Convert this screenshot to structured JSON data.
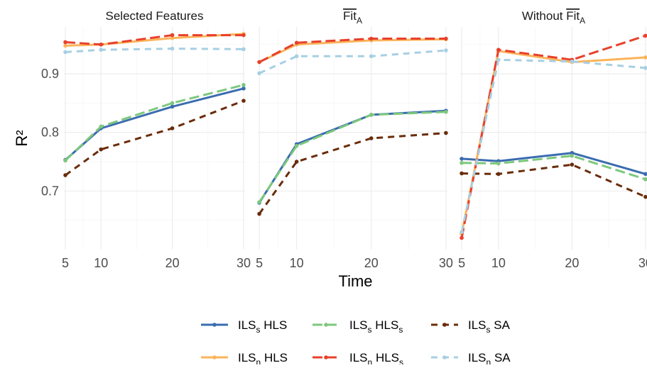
{
  "chart_data": {
    "type": "line",
    "xlabel": "Time",
    "ylabel": "R²",
    "x": [
      5,
      10,
      20,
      30
    ],
    "xticks": [
      "5",
      "10",
      "20",
      "30"
    ],
    "yticks": [
      "0.7",
      "0.8",
      "0.9"
    ],
    "ylim": [
      0.6,
      0.98
    ],
    "grid": true,
    "legend_position": "bottom",
    "panels": [
      {
        "title": "Selected Features",
        "title_base": "Selected Features",
        "title_sub": "",
        "title_overline": false,
        "series": [
          {
            "key": "ils_s_hls",
            "values": [
              0.753,
              0.807,
              0.844,
              0.875
            ]
          },
          {
            "key": "ils_s_hlss",
            "values": [
              0.752,
              0.81,
              0.85,
              0.881
            ]
          },
          {
            "key": "ils_s_sa",
            "values": [
              0.727,
              0.771,
              0.807,
              0.854
            ]
          },
          {
            "key": "ils_n_hls",
            "values": [
              0.948,
              0.95,
              0.961,
              0.968
            ]
          },
          {
            "key": "ils_n_hlss",
            "values": [
              0.954,
              0.95,
              0.966,
              0.966
            ]
          },
          {
            "key": "ils_n_sa",
            "values": [
              0.937,
              0.941,
              0.943,
              0.942
            ]
          }
        ]
      },
      {
        "title": "FitA",
        "title_base": "Fit",
        "title_sub": "A",
        "title_prefix": "",
        "title_overline": true,
        "series": [
          {
            "key": "ils_s_hls",
            "values": [
              0.68,
              0.78,
              0.83,
              0.837
            ]
          },
          {
            "key": "ils_s_hlss",
            "values": [
              0.681,
              0.777,
              0.83,
              0.835
            ]
          },
          {
            "key": "ils_s_sa",
            "values": [
              0.661,
              0.75,
              0.79,
              0.799
            ]
          },
          {
            "key": "ils_n_hls",
            "values": [
              0.92,
              0.95,
              0.957,
              0.959
            ]
          },
          {
            "key": "ils_n_hlss",
            "values": [
              0.92,
              0.953,
              0.96,
              0.96
            ]
          },
          {
            "key": "ils_n_sa",
            "values": [
              0.901,
              0.93,
              0.93,
              0.94
            ]
          }
        ]
      },
      {
        "title": "Without FitA",
        "title_prefix": "Without ",
        "title_base": "Fit",
        "title_sub": "A",
        "title_overline": true,
        "series": [
          {
            "key": "ils_s_hls",
            "values": [
              0.755,
              0.751,
              0.765,
              0.729
            ]
          },
          {
            "key": "ils_s_hlss",
            "values": [
              0.748,
              0.747,
              0.76,
              0.72
            ]
          },
          {
            "key": "ils_s_sa",
            "values": [
              0.73,
              0.729,
              0.745,
              0.69
            ]
          },
          {
            "key": "ils_n_hls",
            "values": [
              0.627,
              0.939,
              0.92,
              0.928
            ]
          },
          {
            "key": "ils_n_hlss",
            "values": [
              0.62,
              0.941,
              0.924,
              0.965
            ]
          },
          {
            "key": "ils_n_sa",
            "values": [
              0.63,
              0.924,
              0.921,
              0.91
            ]
          }
        ]
      }
    ],
    "legend": [
      {
        "key": "ils_s_hls",
        "method": "ILS",
        "method_sub": "s",
        "search": "HLS",
        "search_sub": "",
        "color": "#3a6cb0",
        "dash": "solid"
      },
      {
        "key": "ils_s_hlss",
        "method": "ILS",
        "method_sub": "s",
        "search": "HLS",
        "search_sub": "s",
        "color": "#7cc87c",
        "dash": "longdash"
      },
      {
        "key": "ils_s_sa",
        "method": "ILS",
        "method_sub": "s",
        "search": "SA",
        "search_sub": "",
        "color": "#6a2c0a",
        "dash": "dashed"
      },
      {
        "key": "ils_n_hls",
        "method": "ILS",
        "method_sub": "n",
        "search": "HLS",
        "search_sub": "",
        "color": "#fbb45a",
        "dash": "solid"
      },
      {
        "key": "ils_n_hlss",
        "method": "ILS",
        "method_sub": "n",
        "search": "HLS",
        "search_sub": "s",
        "color": "#e8402c",
        "dash": "longdash"
      },
      {
        "key": "ils_n_sa",
        "method": "ILS",
        "method_sub": "n",
        "search": "SA",
        "search_sub": "",
        "color": "#a7cfe3",
        "dash": "dashed"
      }
    ]
  }
}
